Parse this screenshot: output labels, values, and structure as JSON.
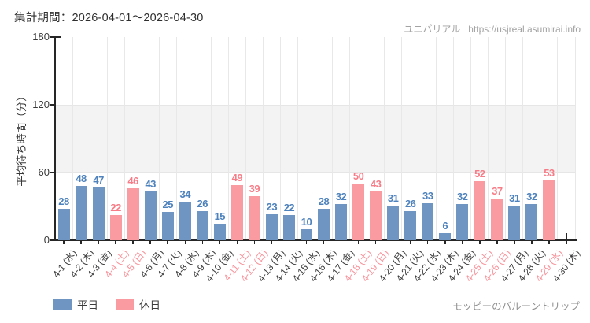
{
  "header": {
    "period_label": "集計期間：2026-04-01～2026-04-30",
    "site_name": "ユニバリアル",
    "site_url": "https://usjreal.asumirai.info"
  },
  "footer": {
    "attraction_name": "モッピーのバルーントリップ"
  },
  "legend": {
    "weekday_label": "平日",
    "holiday_label": "休日"
  },
  "colors": {
    "weekday_bar": "#6f96c2",
    "weekday_value": "#4d82bd",
    "holiday_bar": "#f99ba1",
    "holiday_value": "#f87c87",
    "weekday_axis_label": "#3d3d3d",
    "holiday_axis_label": "#f8939b",
    "band": "#f2f3f2",
    "gridline": "#e8e8e8",
    "axis": "#262626"
  },
  "chart_data": {
    "type": "bar",
    "title": "",
    "xlabel": "",
    "ylabel": "平均待ち時間（分）",
    "ylim": [
      0,
      180
    ],
    "yticks": [
      0,
      60,
      120,
      180
    ],
    "grid": true,
    "shaded_band_y": [
      60,
      120
    ],
    "legend_position": "bottom-left",
    "categories": [
      "4-1 (水)",
      "4-2 (木)",
      "4-3 (金)",
      "4-4 (土)",
      "4-5 (日)",
      "4-6 (月)",
      "4-7 (火)",
      "4-8 (水)",
      "4-9 (木)",
      "4-10 (金)",
      "4-11 (土)",
      "4-12 (日)",
      "4-13 (月)",
      "4-14 (火)",
      "4-15 (水)",
      "4-16 (木)",
      "4-17 (金)",
      "4-18 (土)",
      "4-19 (日)",
      "4-20 (月)",
      "4-21 (火)",
      "4-22 (水)",
      "4-23 (木)",
      "4-24 (金)",
      "4-25 (土)",
      "4-26 (日)",
      "4-27 (月)",
      "4-28 (火)",
      "4-29 (水)",
      "4-30 (木)"
    ],
    "values": [
      28,
      48,
      47,
      22,
      46,
      43,
      25,
      34,
      26,
      15,
      49,
      39,
      23,
      22,
      10,
      28,
      32,
      50,
      43,
      31,
      26,
      33,
      6,
      32,
      52,
      37,
      31,
      32,
      53,
      null
    ],
    "holiday_flags": [
      false,
      false,
      false,
      true,
      true,
      false,
      false,
      false,
      false,
      false,
      true,
      true,
      false,
      false,
      false,
      false,
      false,
      true,
      true,
      false,
      false,
      false,
      false,
      false,
      true,
      true,
      false,
      false,
      true,
      false
    ],
    "series": [
      {
        "name": "平日",
        "type": "weekday"
      },
      {
        "name": "休日",
        "type": "holiday"
      }
    ]
  }
}
